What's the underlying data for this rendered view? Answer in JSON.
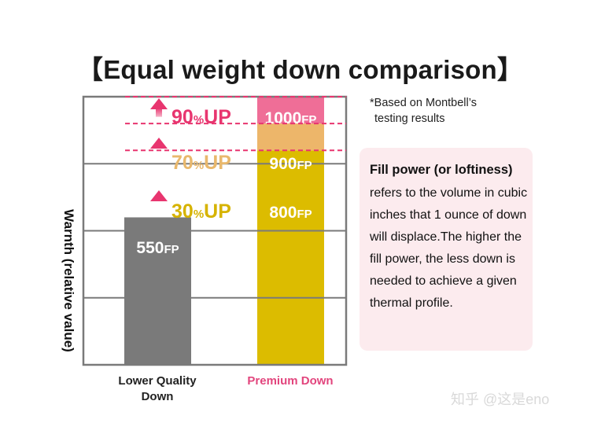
{
  "title": "【Equal weight down comparison】",
  "note": {
    "line1": "*Based on Montbell’s",
    "line2": "testing results"
  },
  "info": {
    "heading": "Fill power (or loftiness)",
    "body": "refers to the volume in cubic inches that 1 ounce of down will displace.The higher the fill power, the less down is needed to achieve a given thermal profile."
  },
  "watermark": "知乎 @这是eno",
  "colors": {
    "lower_bar": "#7a7a7a",
    "premium_800": "#dcbc00",
    "premium_900": "#edb66a",
    "premium_1000": "#ef6e97",
    "accent_pink": "#e8356f",
    "up_30": "#d6b300",
    "up_70": "#e9b86c",
    "up_90": "#e8356f",
    "grid": "#7a7a7a"
  },
  "chart_data": {
    "type": "bar",
    "ylabel": "Warnth (relative value)",
    "categories": [
      "Lower Quality\nDown",
      "Premium Down"
    ],
    "ylim": [
      0,
      1000
    ],
    "grid": true,
    "bars": [
      {
        "category": "Lower Quality Down",
        "segments": [
          {
            "value": 550,
            "label": "550",
            "unit": "FP",
            "color": "#7a7a7a"
          }
        ]
      },
      {
        "category": "Premium Down",
        "segments": [
          {
            "value": 800,
            "label": "800",
            "unit": "FP",
            "color": "#dcbc00"
          },
          {
            "value": 900,
            "label": "900",
            "unit": "FP",
            "color": "#edb66a"
          },
          {
            "value": 1000,
            "label": "1000",
            "unit": "FP",
            "color": "#ef6e97"
          }
        ]
      }
    ],
    "annotations": [
      {
        "value": 800,
        "pct": "30",
        "unit": "%",
        "suffix": "UP",
        "color": "#d6b300"
      },
      {
        "value": 900,
        "pct": "70",
        "unit": "%",
        "suffix": "UP",
        "color": "#e9b86c"
      },
      {
        "value": 1000,
        "pct": "90",
        "unit": "%",
        "suffix": "UP",
        "color": "#e8356f"
      }
    ]
  }
}
